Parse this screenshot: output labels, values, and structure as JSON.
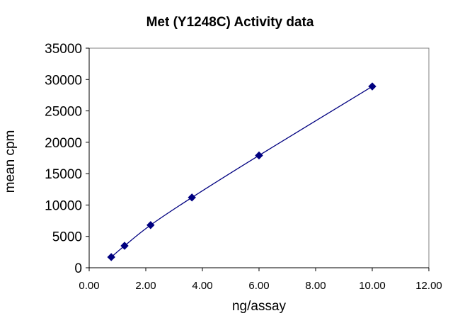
{
  "chart_data": {
    "type": "scatter",
    "title": "Met (Y1248C) Activity data",
    "xlabel": "ng/assay",
    "ylabel": "mean cpm",
    "xlim": [
      0,
      12
    ],
    "ylim": [
      0,
      35000
    ],
    "x_ticks": [
      "0.00",
      "2.00",
      "4.00",
      "6.00",
      "8.00",
      "10.00",
      "12.00"
    ],
    "y_ticks": [
      "0",
      "5000",
      "10000",
      "15000",
      "20000",
      "25000",
      "30000",
      "35000"
    ],
    "grid": false,
    "legend": "none",
    "line_style": "smoothed",
    "marker": "diamond",
    "series": [
      {
        "color": "#000080",
        "x": [
          0.78,
          1.25,
          2.17,
          3.63,
          6.0,
          10.0
        ],
        "y": [
          1700,
          3500,
          6800,
          11200,
          17900,
          28900
        ]
      }
    ]
  }
}
